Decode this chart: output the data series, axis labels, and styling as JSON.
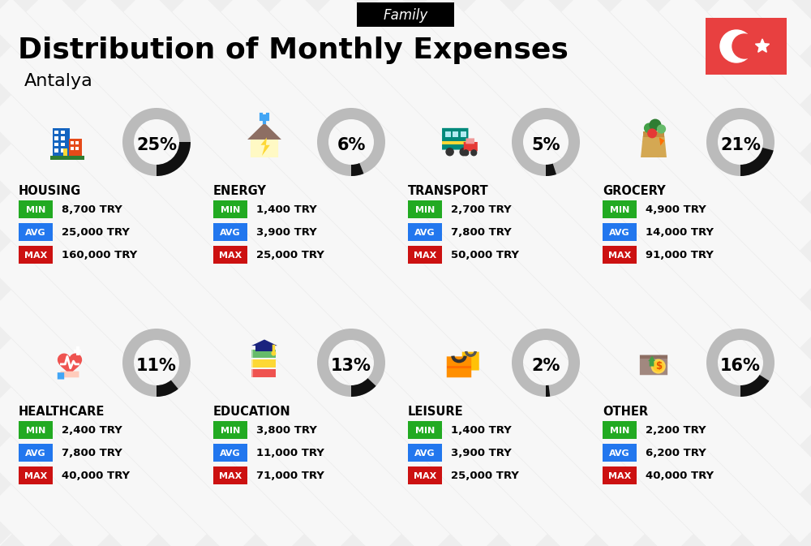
{
  "title": "Distribution of Monthly Expenses",
  "subtitle": "Antalya",
  "header_label": "Family",
  "bg_color": "#eeeeee",
  "categories": [
    {
      "name": "HOUSING",
      "pct": 25,
      "min_val": "8,700 TRY",
      "avg_val": "25,000 TRY",
      "max_val": "160,000 TRY",
      "row": 0,
      "col": 0
    },
    {
      "name": "ENERGY",
      "pct": 6,
      "min_val": "1,400 TRY",
      "avg_val": "3,900 TRY",
      "max_val": "25,000 TRY",
      "row": 0,
      "col": 1
    },
    {
      "name": "TRANSPORT",
      "pct": 5,
      "min_val": "2,700 TRY",
      "avg_val": "7,800 TRY",
      "max_val": "50,000 TRY",
      "row": 0,
      "col": 2
    },
    {
      "name": "GROCERY",
      "pct": 21,
      "min_val": "4,900 TRY",
      "avg_val": "14,000 TRY",
      "max_val": "91,000 TRY",
      "row": 0,
      "col": 3
    },
    {
      "name": "HEALTHCARE",
      "pct": 11,
      "min_val": "2,400 TRY",
      "avg_val": "7,800 TRY",
      "max_val": "40,000 TRY",
      "row": 1,
      "col": 0
    },
    {
      "name": "EDUCATION",
      "pct": 13,
      "min_val": "3,800 TRY",
      "avg_val": "11,000 TRY",
      "max_val": "71,000 TRY",
      "row": 1,
      "col": 1
    },
    {
      "name": "LEISURE",
      "pct": 2,
      "min_val": "1,400 TRY",
      "avg_val": "3,900 TRY",
      "max_val": "25,000 TRY",
      "row": 1,
      "col": 2
    },
    {
      "name": "OTHER",
      "pct": 16,
      "min_val": "2,200 TRY",
      "avg_val": "6,200 TRY",
      "max_val": "40,000 TRY",
      "row": 1,
      "col": 3
    }
  ],
  "color_min": "#22aa22",
  "color_avg": "#2277ee",
  "color_max": "#cc1111",
  "donut_filled": "#111111",
  "donut_empty": "#bbbbbb",
  "flag_color": "#e84040",
  "stripe_color": "#ffffff",
  "title_fontsize": 26,
  "subtitle_fontsize": 16,
  "header_fontsize": 12,
  "cat_fontsize": 10.5,
  "val_fontsize": 9.5,
  "pct_fontsize": 15
}
